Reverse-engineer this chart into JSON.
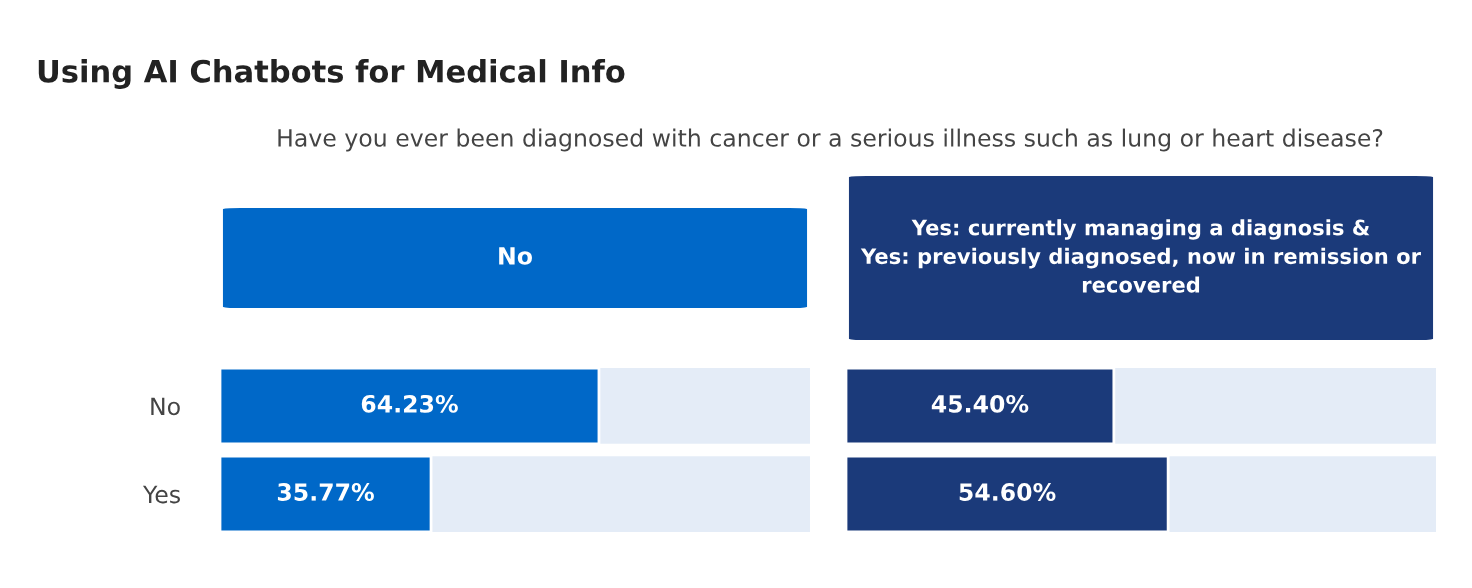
{
  "chart_data": [
    {
      "type": "other",
      "title": "Using AI Chatbots for Medical Info",
      "subtitle": "Have you ever been diagnosed with cancer or a serious illness such as lung or heart disease?"
    },
    {
      "type": "bar",
      "orientation": "horizontal",
      "title": "No",
      "categories": [
        "No",
        "Yes"
      ],
      "values": [
        64.23,
        35.77
      ],
      "value_labels": [
        "64.23%",
        "35.77%"
      ],
      "color": "#0068c8",
      "xlim": [
        0,
        100
      ],
      "tick_labels": "y"
    },
    {
      "type": "bar",
      "orientation": "horizontal",
      "title": "Yes: currently managing a diagnosis &\nYes: previously diagnosed, now in remission or\nrecovered",
      "categories": [
        null,
        null
      ],
      "values": [
        45.4,
        54.6
      ],
      "value_labels": [
        "45.40%",
        "54.60%"
      ],
      "color": "#1b3a7a",
      "xlim": [
        0,
        100
      ],
      "tick_labels": false
    }
  ]
}
